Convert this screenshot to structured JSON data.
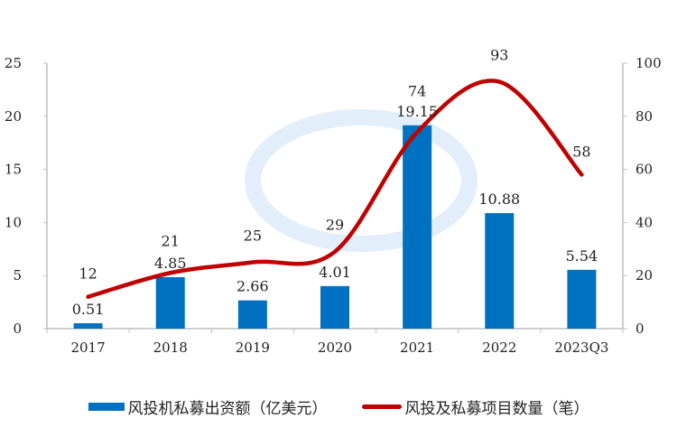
{
  "chart_data": {
    "type": "bar+line",
    "categories": [
      "2017",
      "2018",
      "2019",
      "2020",
      "2021",
      "2022",
      "2023Q3"
    ],
    "series": [
      {
        "name": "风投机私募出资额（亿美元）",
        "type": "bar",
        "axis": "left",
        "values": [
          0.51,
          4.85,
          2.66,
          4.01,
          19.15,
          10.88,
          5.54
        ],
        "labels": [
          "0.51",
          "4.85",
          "2.66",
          "4.01",
          "19.15",
          "10.88",
          "5.54"
        ],
        "color": "#0070c0"
      },
      {
        "name": "风投及私募项目数量（笔）",
        "type": "line",
        "axis": "right",
        "smooth": true,
        "values": [
          12,
          21,
          25,
          29,
          74,
          93,
          58
        ],
        "labels": [
          "12",
          "21",
          "25",
          "29",
          "74",
          "93",
          "58"
        ],
        "color": "#c00000"
      }
    ],
    "left_axis": {
      "ylim": [
        0,
        25
      ],
      "ticks": [
        "0",
        "5",
        "10",
        "15",
        "20",
        "25"
      ]
    },
    "right_axis": {
      "ylim": [
        0,
        100
      ],
      "ticks": [
        "0",
        "20",
        "40",
        "60",
        "80",
        "100"
      ]
    },
    "grid": false,
    "legend_placement": "bottom"
  }
}
